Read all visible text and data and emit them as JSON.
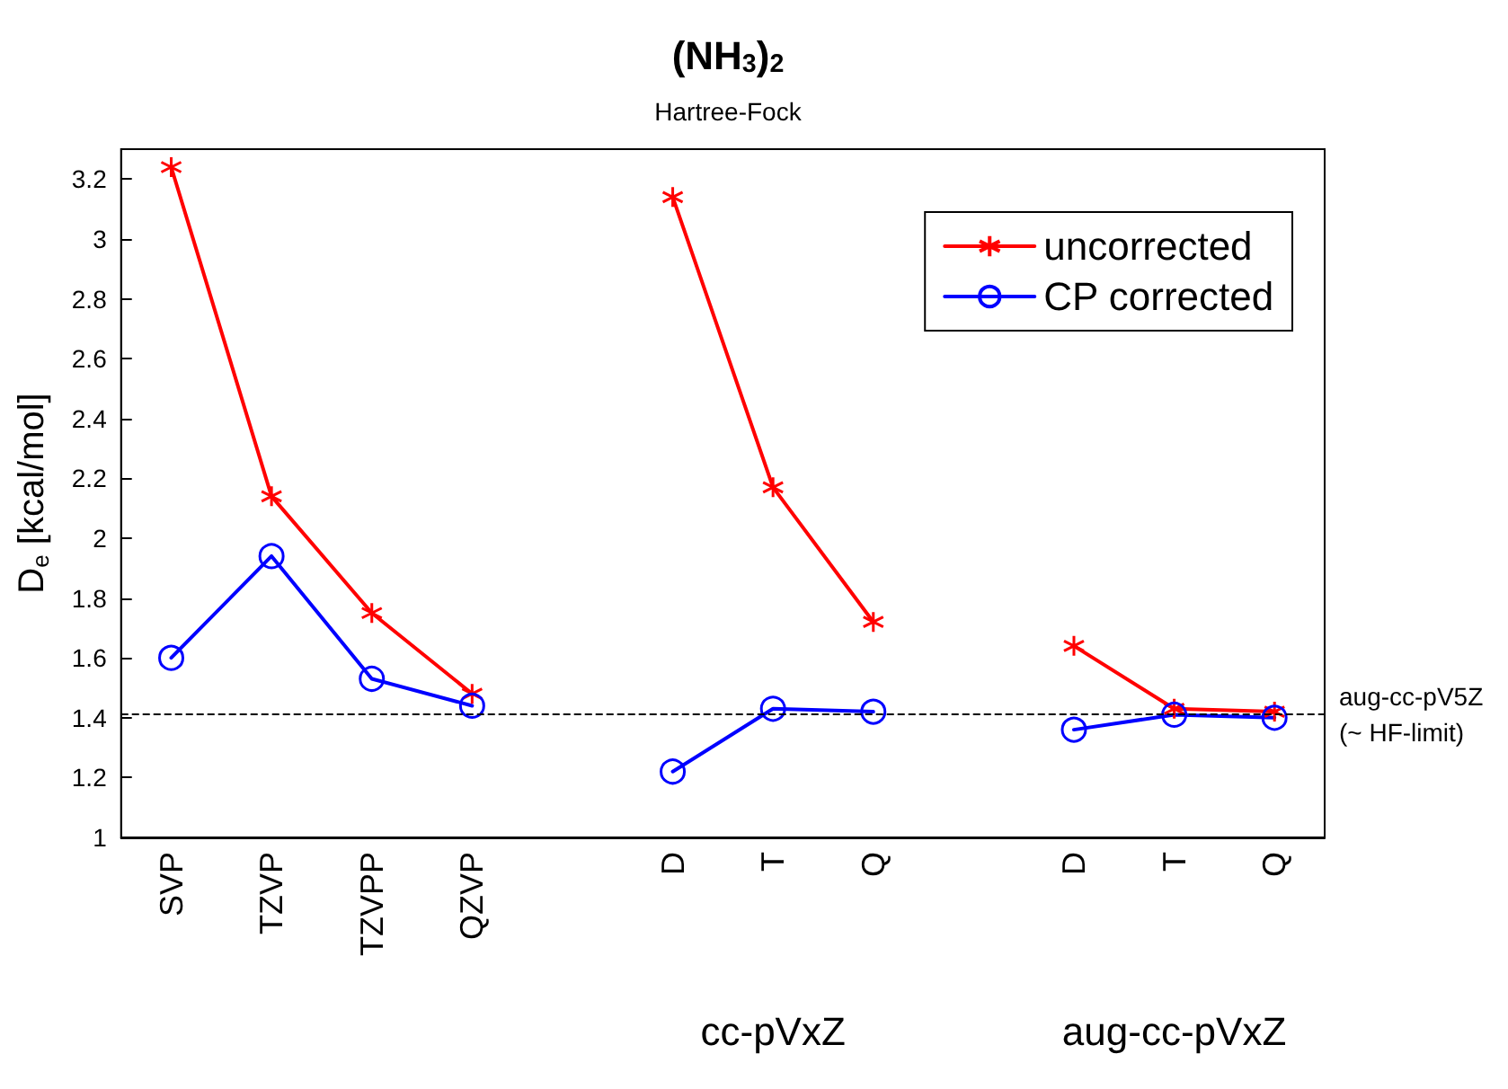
{
  "chart_data": {
    "type": "line",
    "title": "(NH$_{3}$)$_{2}$",
    "subtitle": "Hartree-Fock",
    "ylabel": "D$_{e}$ [kcal/mol]",
    "categories": [
      "SVP",
      "TZVP",
      "TZVPP",
      "QZVP",
      null,
      "D",
      "T",
      "Q",
      null,
      "D",
      "T",
      "Q"
    ],
    "series": [
      {
        "name": "uncorrected",
        "color": "#ff0000",
        "marker": "cross",
        "values": [
          3.24,
          2.14,
          1.75,
          1.48,
          null,
          3.14,
          2.17,
          1.72,
          null,
          1.64,
          1.43,
          1.42
        ]
      },
      {
        "name": "CP corrected",
        "color": "#0000ff",
        "marker": "circle",
        "values": [
          1.6,
          1.94,
          1.53,
          1.44,
          null,
          1.22,
          1.43,
          1.42,
          null,
          1.36,
          1.41,
          1.4
        ]
      }
    ],
    "ylim": [
      1,
      3.3
    ],
    "yticks": [
      1,
      1.2,
      1.4,
      1.6,
      1.8,
      2,
      2.2,
      2.4,
      2.6,
      2.8,
      3,
      3.2
    ],
    "ref_lines": [
      {
        "axis": "y",
        "value": 1.41,
        "label": "aug-cc-pV5Z (~ HF-limit)",
        "color": "#000000",
        "line_style": "dashed"
      }
    ],
    "annotations": [
      "cc-pVxZ",
      "aug-cc-pVxZ"
    ],
    "grid": false,
    "legend": "top right",
    "line_style": "solid"
  }
}
